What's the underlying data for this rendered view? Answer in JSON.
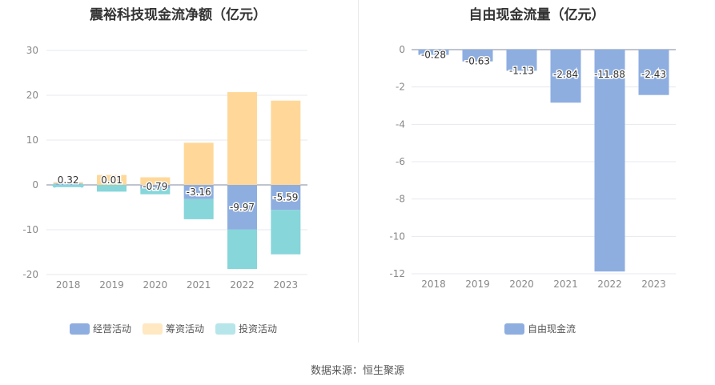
{
  "source_text": "数据来源：恒生聚源",
  "chart_data": [
    {
      "type": "bar",
      "stacked": true,
      "title": "震裕科技现金流净额（亿元）",
      "categories": [
        "2018",
        "2019",
        "2020",
        "2021",
        "2022",
        "2023"
      ],
      "ylim": [
        -20,
        30
      ],
      "yticks": [
        30,
        20,
        10,
        0,
        -10,
        -20
      ],
      "grid": true,
      "legend_position": "bottom",
      "series": [
        {
          "name": "经营活动",
          "color": "#8eaee0",
          "values": [
            0.32,
            0.01,
            -0.79,
            -3.16,
            -9.97,
            -5.59
          ]
        },
        {
          "name": "筹资活动",
          "color": "#ffd899",
          "values": [
            0.3,
            2.2,
            1.7,
            9.4,
            20.7,
            18.8
          ]
        },
        {
          "name": "投资活动",
          "color": "#86d6da",
          "values": [
            -0.5,
            -1.5,
            -1.3,
            -4.5,
            -8.8,
            -9.9
          ]
        }
      ],
      "data_labels": [
        "0.32",
        "0.01",
        "-0.79",
        "-3.16",
        "-9.97",
        "-5.59"
      ]
    },
    {
      "type": "bar",
      "title": "自由现金流量（亿元）",
      "categories": [
        "2018",
        "2019",
        "2020",
        "2021",
        "2022",
        "2023"
      ],
      "ylim": [
        -12,
        0
      ],
      "yticks": [
        0,
        -2,
        -4,
        -6,
        -8,
        -10,
        -12
      ],
      "grid": true,
      "legend_position": "bottom",
      "series": [
        {
          "name": "自由现金流",
          "color": "#8eaee0",
          "values": [
            -0.28,
            -0.63,
            -1.13,
            -2.84,
            -11.88,
            -2.43
          ]
        }
      ],
      "data_labels": [
        "-0.28",
        "-0.63",
        "-1.13",
        "-2.84",
        "-11.88",
        "-2.43"
      ]
    }
  ]
}
